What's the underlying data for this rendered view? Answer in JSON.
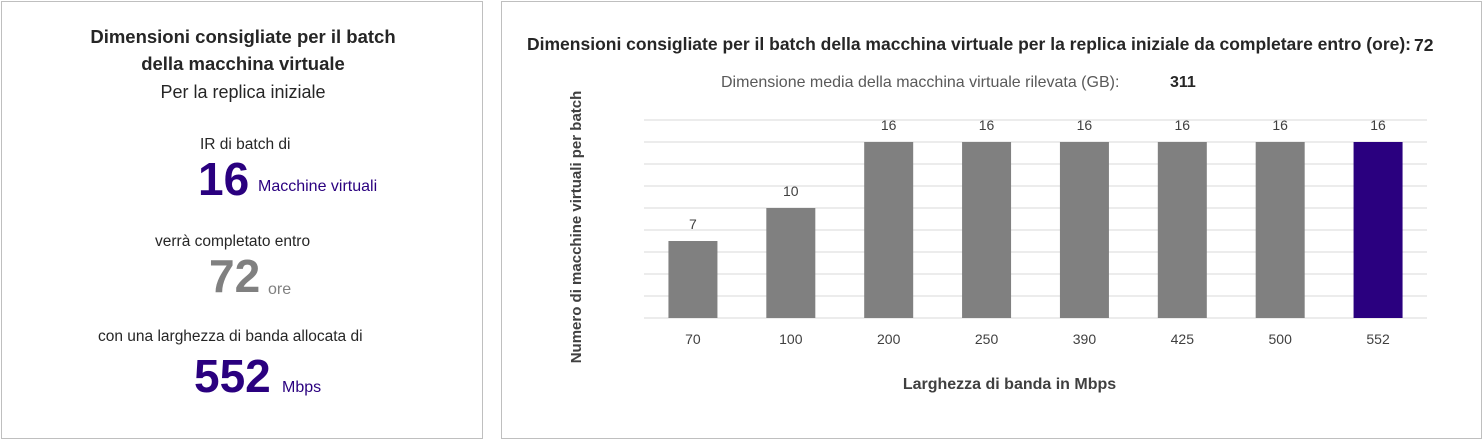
{
  "summary": {
    "title_line1": "Dimensioni consigliate per il batch",
    "title_line2": "della macchina virtuale",
    "subtitle": "Per la replica iniziale",
    "batch_label": "IR di batch di",
    "batch_value": "16",
    "batch_unit": "Macchine virtuali",
    "complete_label": "verrà completato entro",
    "hours_value": "72",
    "hours_unit": "ore",
    "bandwidth_label": "con una larghezza di banda allocata di",
    "bandwidth_value": "552",
    "bandwidth_unit": "Mbps"
  },
  "chart_header": {
    "title": "Dimensioni consigliate per il batch della macchina virtuale per la replica iniziale da completare entro (ore):",
    "title_value": "72",
    "avg_label": "Dimensione media della macchina virtuale rilevata (GB):",
    "avg_value": "311"
  },
  "colors": {
    "accent": "#2a007f",
    "bar": "#808080",
    "grid": "#d9d9d9"
  },
  "chart_data": {
    "type": "bar",
    "categories": [
      "70",
      "100",
      "200",
      "250",
      "390",
      "425",
      "500",
      "552"
    ],
    "values": [
      7,
      10,
      16,
      16,
      16,
      16,
      16,
      16
    ],
    "highlight_index": 7,
    "title": "Dimensioni consigliate per il batch della macchina virtuale per la replica iniziale da completare entro (ore):",
    "xlabel": "Larghezza di banda in Mbps",
    "ylabel": "Numero di macchine virtuali per batch",
    "ylim": [
      0,
      16
    ],
    "grid": true,
    "data_labels": true
  }
}
